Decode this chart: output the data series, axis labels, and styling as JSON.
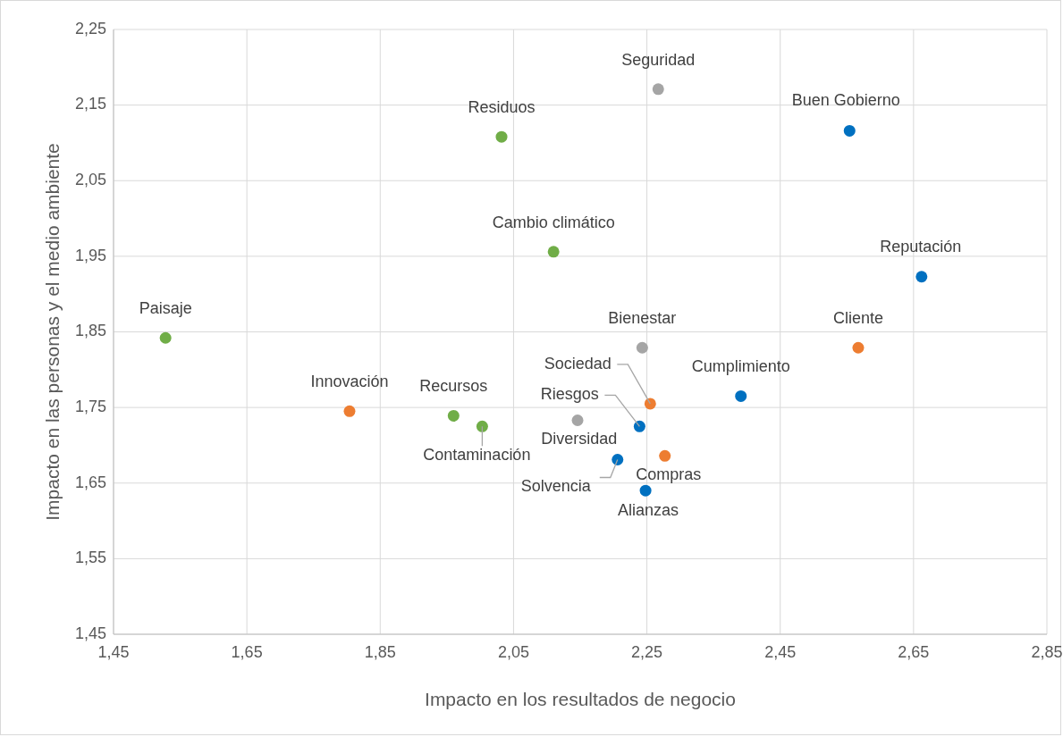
{
  "chart_data": {
    "type": "scatter",
    "xlabel": "Impacto en los resultados de negocio",
    "ylabel": "Impacto en las personas y el medio ambiente",
    "xlim": [
      1.45,
      2.85
    ],
    "xticks": [
      {
        "value": 1.45,
        "label": "1,45"
      },
      {
        "value": 1.65,
        "label": "1,65"
      },
      {
        "value": 1.85,
        "label": "1,85"
      },
      {
        "value": 2.05,
        "label": "2,05"
      },
      {
        "value": 2.25,
        "label": "2,25"
      },
      {
        "value": 2.45,
        "label": "2,45"
      },
      {
        "value": 2.65,
        "label": "2,65"
      },
      {
        "value": 2.85,
        "label": "2,85"
      }
    ],
    "ylim": [
      1.45,
      2.25
    ],
    "yticks": [
      {
        "value": 1.45,
        "label": "1,45"
      },
      {
        "value": 1.55,
        "label": "1,55"
      },
      {
        "value": 1.65,
        "label": "1,65"
      },
      {
        "value": 1.75,
        "label": "1,75"
      },
      {
        "value": 1.85,
        "label": "1,85"
      },
      {
        "value": 1.95,
        "label": "1,95"
      },
      {
        "value": 2.05,
        "label": "2,05"
      },
      {
        "value": 2.15,
        "label": "2,15"
      },
      {
        "value": 2.25,
        "label": "2,25"
      }
    ],
    "grid": true,
    "marker": "circle",
    "series": [
      {
        "color": "#70ad47",
        "x": [
          1.528,
          1.96,
          2.003,
          2.032,
          2.11
        ],
        "values": [
          1.842,
          1.739,
          1.725,
          2.108,
          1.956
        ]
      },
      {
        "color": "#a5a5a5",
        "x": [
          2.267,
          2.243,
          2.146
        ],
        "values": [
          2.171,
          1.829,
          1.733
        ]
      },
      {
        "color": "#ed7d31",
        "x": [
          1.804,
          2.255,
          2.277,
          2.567
        ],
        "values": [
          1.745,
          1.755,
          1.686,
          1.829
        ]
      },
      {
        "color": "#0070c0",
        "x": [
          2.239,
          2.206,
          2.248,
          2.391,
          2.554,
          2.662
        ],
        "values": [
          1.725,
          1.681,
          1.64,
          1.765,
          2.116,
          1.923
        ]
      }
    ],
    "annotations": [
      {
        "text": "Paisaje",
        "x": 1.528,
        "y": 1.842
      },
      {
        "text": "Innovación",
        "x": 1.804,
        "y": 1.745
      },
      {
        "text": "Recursos",
        "x": 1.96,
        "y": 1.739
      },
      {
        "text": "Contaminación",
        "x": 2.003,
        "y": 1.725
      },
      {
        "text": "Residuos",
        "x": 2.032,
        "y": 2.108
      },
      {
        "text": "Cambio climático",
        "x": 2.11,
        "y": 1.956
      },
      {
        "text": "Seguridad",
        "x": 2.267,
        "y": 2.171
      },
      {
        "text": "Bienestar",
        "x": 2.243,
        "y": 1.829
      },
      {
        "text": "Sociedad",
        "x": 2.255,
        "y": 1.755
      },
      {
        "text": "Riesgos",
        "x": 2.239,
        "y": 1.725
      },
      {
        "text": "Diversidad",
        "x": 2.206,
        "y": 1.681
      },
      {
        "text": "Solvencia",
        "x": 2.206,
        "y": 1.681
      },
      {
        "text": "Compras",
        "x": 2.277,
        "y": 1.686
      },
      {
        "text": "Alianzas",
        "x": 2.248,
        "y": 1.64
      },
      {
        "text": "Cumplimiento",
        "x": 2.391,
        "y": 1.765
      },
      {
        "text": "Buen Gobierno",
        "x": 2.554,
        "y": 2.116
      },
      {
        "text": "Cliente",
        "x": 2.567,
        "y": 1.829
      },
      {
        "text": "Reputación",
        "x": 2.662,
        "y": 1.923
      }
    ]
  }
}
